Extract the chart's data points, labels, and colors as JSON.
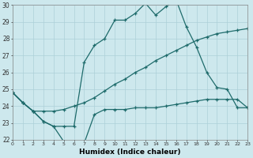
{
  "xlabel": "Humidex (Indice chaleur)",
  "background_color": "#cde8ed",
  "line_color": "#1e6b6b",
  "grid_color": "#add0d8",
  "x_min": 0,
  "x_max": 23,
  "y_min": 22,
  "y_max": 30,
  "line1_x": [
    0,
    1,
    2,
    3,
    4,
    5,
    6,
    7,
    8,
    9,
    10,
    11,
    12,
    13,
    14,
    15,
    16,
    17,
    18,
    19,
    20,
    21,
    22,
    23
  ],
  "line1_y": [
    24.8,
    24.2,
    23.7,
    23.1,
    22.8,
    22.8,
    22.8,
    26.6,
    27.6,
    28.0,
    29.1,
    29.1,
    29.5,
    30.1,
    29.4,
    29.9,
    30.3,
    28.7,
    27.5,
    26.0,
    25.1,
    25.0,
    23.9,
    23.9
  ],
  "line2_x": [
    0,
    1,
    2,
    3,
    4,
    5,
    6,
    7,
    8,
    9,
    10,
    11,
    12,
    13,
    14,
    15,
    16,
    17,
    18,
    19,
    20,
    21,
    22,
    23
  ],
  "line2_y": [
    24.8,
    24.2,
    23.7,
    23.7,
    23.7,
    23.8,
    24.0,
    24.2,
    24.5,
    24.9,
    25.3,
    25.6,
    26.0,
    26.3,
    26.7,
    27.0,
    27.3,
    27.6,
    27.9,
    28.1,
    28.3,
    28.4,
    28.5,
    28.6
  ],
  "line3_x": [
    0,
    1,
    2,
    3,
    4,
    5,
    6,
    7,
    8,
    9,
    10,
    11,
    12,
    13,
    14,
    15,
    16,
    17,
    18,
    19,
    20,
    21,
    22,
    23
  ],
  "line3_y": [
    24.8,
    24.2,
    23.7,
    23.1,
    22.8,
    21.9,
    21.8,
    21.8,
    23.5,
    23.8,
    23.8,
    23.8,
    23.9,
    23.9,
    23.9,
    24.0,
    24.1,
    24.2,
    24.3,
    24.4,
    24.4,
    24.4,
    24.4,
    23.9
  ]
}
